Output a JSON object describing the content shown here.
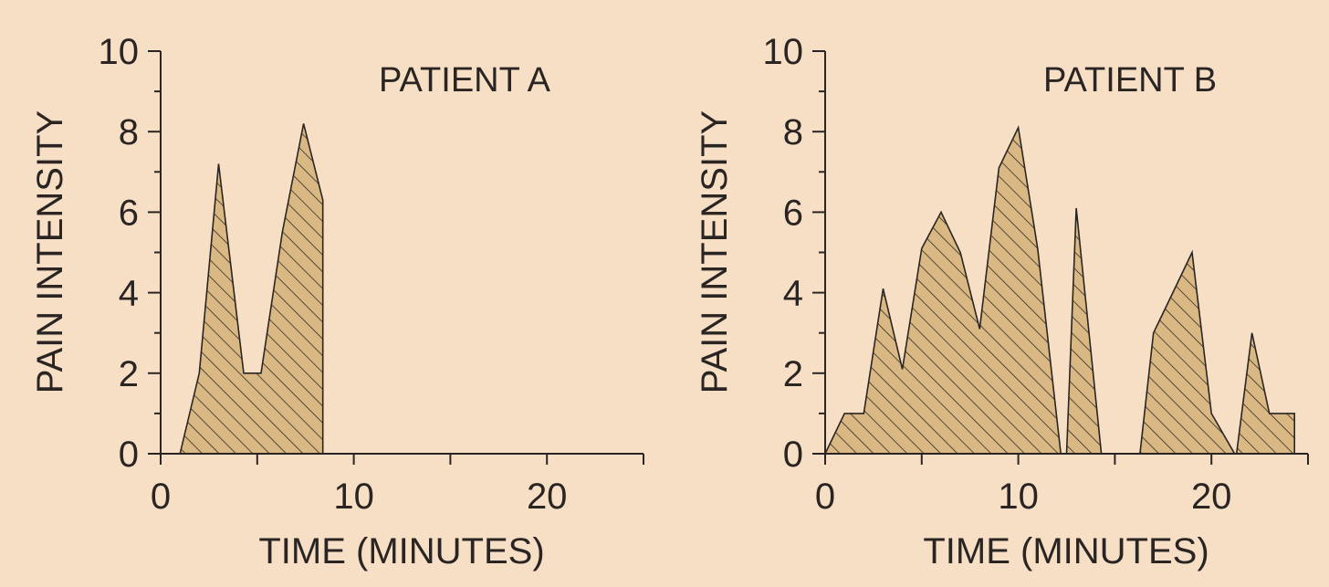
{
  "colors": {
    "background": "#f7dfc6",
    "area_fill": "#d9b883",
    "hatch": "#2a2522",
    "axis": "#2a2522"
  },
  "chart_data": [
    {
      "type": "area",
      "title": "PATIENT A",
      "xlabel": "TIME (MINUTES)",
      "ylabel": "PAIN INTENSITY",
      "xlim": [
        0,
        25
      ],
      "ylim": [
        0,
        10
      ],
      "x_ticks": [
        0,
        10,
        20
      ],
      "y_ticks": [
        0,
        2,
        4,
        6,
        8,
        10
      ],
      "fill_pattern": "diagonal-hatch",
      "segments": [
        {
          "x": [
            1,
            2,
            3,
            4.3,
            5.2,
            6.3,
            7.4,
            8.4,
            8.4
          ],
          "y": [
            0,
            2,
            7.2,
            2,
            2,
            5.5,
            8.2,
            6.3,
            0
          ]
        }
      ]
    },
    {
      "type": "area",
      "title": "PATIENT B",
      "xlabel": "TIME (MINUTES)",
      "ylabel": "PAIN INTENSITY",
      "xlim": [
        0,
        25
      ],
      "ylim": [
        0,
        10
      ],
      "x_ticks": [
        0,
        10,
        20
      ],
      "y_ticks": [
        0,
        2,
        4,
        6,
        8,
        10
      ],
      "fill_pattern": "diagonal-hatch",
      "segments": [
        {
          "x": [
            0,
            1,
            2,
            3,
            4,
            5,
            6,
            7,
            8,
            9,
            10,
            11,
            12.2
          ],
          "y": [
            0,
            1,
            1,
            4.1,
            2.1,
            5.1,
            6,
            5,
            3.1,
            7.1,
            8.1,
            5.1,
            0
          ]
        },
        {
          "x": [
            12.5,
            13,
            14.3
          ],
          "y": [
            0,
            6.1,
            0
          ]
        },
        {
          "x": [
            16.3,
            17,
            18,
            19,
            20,
            21.2
          ],
          "y": [
            0,
            3,
            4,
            5,
            1,
            0
          ]
        },
        {
          "x": [
            21.3,
            22.1,
            23,
            24.3,
            24.3
          ],
          "y": [
            0,
            3,
            1,
            1,
            0
          ]
        }
      ]
    }
  ]
}
